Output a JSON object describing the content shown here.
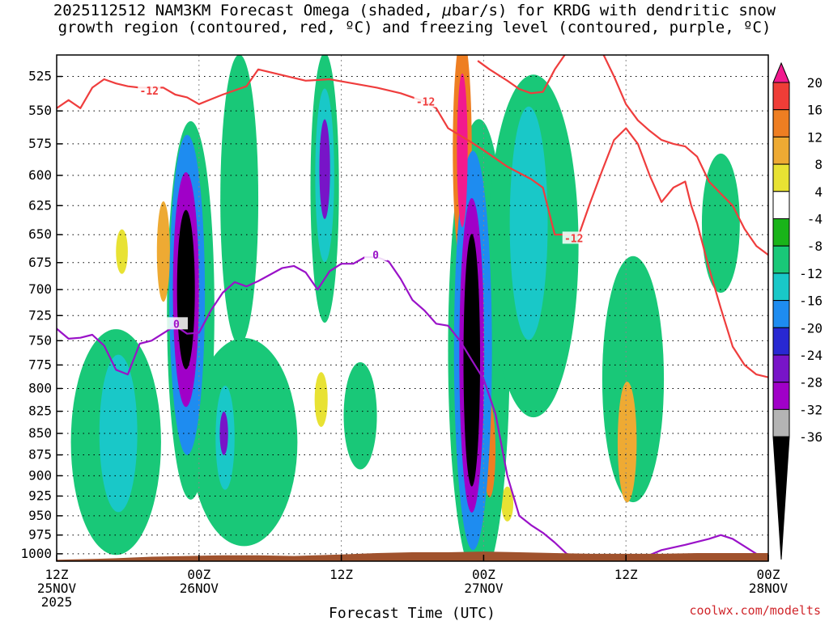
{
  "title": {
    "line1_pre": "2025112512 NAM3KM Forecast Omega (shaded, ",
    "line1_mu": "μ",
    "line1_post": "bar/s) for KRDG with dendritic snow",
    "line2": "growth region (contoured, red, ºC) and freezing level (contoured, purple, ºC)"
  },
  "chart_data": {
    "type": "heatmap",
    "xlabel": "Forecast Time (UTC)",
    "x_ticks": [
      {
        "hour": 0,
        "lines": [
          "12Z",
          "25NOV",
          "2025"
        ]
      },
      {
        "hour": 12,
        "lines": [
          "00Z",
          "26NOV"
        ]
      },
      {
        "hour": 24,
        "lines": [
          "12Z"
        ]
      },
      {
        "hour": 36,
        "lines": [
          "00Z",
          "27NOV"
        ]
      },
      {
        "hour": 48,
        "lines": [
          "12Z"
        ]
      },
      {
        "hour": 60,
        "lines": [
          "00Z",
          "28NOV"
        ]
      }
    ],
    "x_range_hours": [
      0,
      60
    ],
    "y_axis": {
      "type": "log-pressure",
      "range_mb": [
        1010,
        510
      ],
      "reversed": true
    },
    "y_ticks": [
      525,
      550,
      575,
      600,
      625,
      650,
      675,
      700,
      725,
      750,
      775,
      800,
      825,
      850,
      875,
      900,
      925,
      950,
      975,
      1000
    ],
    "grid": true,
    "colorbar": {
      "labels": [
        "20",
        "16",
        "12",
        "8",
        "4",
        "-4",
        "-8",
        "-12",
        "-16",
        "-20",
        "-24",
        "-28",
        "-32",
        "-36"
      ],
      "colors": [
        "#f21a8e",
        "#ef3d37",
        "#ee7e22",
        "#eeaa33",
        "#e8e233",
        "#ffffff",
        "#19b419",
        "#19c878",
        "#19c8c8",
        "#1e8cf0",
        "#2828d2",
        "#7814c8",
        "#a000c8",
        "#b4b4b4",
        "#000000"
      ]
    },
    "omega_features": [
      {
        "t": 10.9,
        "p": 700,
        "dt": 0.75,
        "dp": 75,
        "value": -36
      },
      {
        "t": 10.9,
        "p": 700,
        "dt": 1.1,
        "dp": 110,
        "value": -28
      },
      {
        "t": 11.0,
        "p": 705,
        "dt": 1.5,
        "dp": 150,
        "value": -16
      },
      {
        "t": 11.3,
        "p": 720,
        "dt": 2.0,
        "dp": 180,
        "value": -8
      },
      {
        "t": 35.0,
        "p": 770,
        "dt": 0.7,
        "dp": 130,
        "value": -36
      },
      {
        "t": 35.0,
        "p": 765,
        "dt": 1.05,
        "dp": 160,
        "value": -28
      },
      {
        "t": 35.1,
        "p": 760,
        "dt": 1.6,
        "dp": 200,
        "value": -16
      },
      {
        "t": 35.6,
        "p": 760,
        "dt": 2.6,
        "dp": 230,
        "value": -8
      },
      {
        "t": 22.6,
        "p": 595,
        "dt": 0.45,
        "dp": 40,
        "value": -24
      },
      {
        "t": 22.6,
        "p": 600,
        "dt": 0.8,
        "dp": 70,
        "value": -12
      },
      {
        "t": 22.6,
        "p": 610,
        "dt": 1.2,
        "dp": 110,
        "value": -8
      },
      {
        "t": 14.1,
        "p": 850,
        "dt": 0.35,
        "dp": 25,
        "value": -24
      },
      {
        "t": 14.2,
        "p": 855,
        "dt": 0.8,
        "dp": 60,
        "value": -12
      },
      {
        "t": 5.2,
        "p": 850,
        "dt": 1.6,
        "dp": 90,
        "value": -12
      },
      {
        "t": 5.0,
        "p": 860,
        "dt": 3.8,
        "dp": 130,
        "value": -8
      },
      {
        "t": 15.8,
        "p": 860,
        "dt": 4.5,
        "dp": 120,
        "value": -8
      },
      {
        "t": 15.4,
        "p": 620,
        "dt": 1.6,
        "dp": 120,
        "value": -8
      },
      {
        "t": 40.2,
        "p": 660,
        "dt": 3.8,
        "dp": 150,
        "value": -8
      },
      {
        "t": 39.8,
        "p": 640,
        "dt": 1.6,
        "dp": 100,
        "value": -12
      },
      {
        "t": 48.6,
        "p": 790,
        "dt": 2.6,
        "dp": 130,
        "value": -8
      },
      {
        "t": 56.0,
        "p": 640,
        "dt": 1.6,
        "dp": 60,
        "value": -8
      },
      {
        "t": 25.6,
        "p": 830,
        "dt": 1.4,
        "dp": 60,
        "value": -8
      },
      {
        "t": 34.2,
        "p": 580,
        "dt": 0.45,
        "dp": 60,
        "value": 20
      },
      {
        "t": 34.2,
        "p": 580,
        "dt": 0.8,
        "dp": 90,
        "value": 12
      },
      {
        "t": 36.5,
        "p": 870,
        "dt": 0.5,
        "dp": 55,
        "value": 12
      },
      {
        "t": 48.1,
        "p": 860,
        "dt": 0.8,
        "dp": 70,
        "value": 8
      },
      {
        "t": 9.0,
        "p": 665,
        "dt": 0.55,
        "dp": 45,
        "value": 8
      },
      {
        "t": 22.3,
        "p": 812,
        "dt": 0.55,
        "dp": 30,
        "value": 4
      },
      {
        "t": 5.5,
        "p": 665,
        "dt": 0.5,
        "dp": 20,
        "value": 4
      },
      {
        "t": 38.0,
        "p": 935,
        "dt": 0.5,
        "dp": 22,
        "value": 4
      }
    ],
    "contours": [
      {
        "name": "-12",
        "color": "#ef3d3d",
        "label_color": "#ef3d3d",
        "labels": [
          {
            "t": 7.8,
            "p": 535
          },
          {
            "t": 31.1,
            "p": 543
          },
          {
            "t": 43.6,
            "p": 653
          }
        ],
        "points": [
          [
            0,
            548
          ],
          [
            1,
            542
          ],
          [
            2,
            548
          ],
          [
            3,
            533
          ],
          [
            4,
            527
          ],
          [
            5,
            530
          ],
          [
            6,
            532
          ],
          [
            7,
            533
          ],
          [
            9,
            533
          ],
          [
            10,
            538
          ],
          [
            11,
            540
          ],
          [
            12,
            545
          ],
          [
            14,
            538
          ],
          [
            16,
            532
          ],
          [
            17,
            520
          ],
          [
            19,
            524
          ],
          [
            21,
            528
          ],
          [
            23,
            527
          ],
          [
            25,
            530
          ],
          [
            27,
            533
          ],
          [
            29,
            537
          ],
          [
            31,
            543
          ],
          [
            32,
            548
          ],
          [
            33,
            563
          ],
          [
            35,
            574
          ],
          [
            36,
            580
          ],
          [
            38,
            593
          ],
          [
            40,
            603
          ],
          [
            41,
            610
          ],
          [
            41.5,
            630
          ],
          [
            42,
            650
          ],
          [
            43,
            650
          ],
          [
            44,
            651
          ],
          [
            45,
            622
          ],
          [
            46,
            596
          ],
          [
            47,
            572
          ],
          [
            48,
            563
          ],
          [
            49,
            575
          ],
          [
            50,
            600
          ],
          [
            51,
            622
          ],
          [
            52,
            610
          ],
          [
            53,
            605
          ],
          [
            53.5,
            625
          ],
          [
            54,
            640
          ],
          [
            55,
            680
          ],
          [
            56,
            718
          ],
          [
            57,
            756
          ],
          [
            58,
            775
          ],
          [
            59,
            785
          ],
          [
            60,
            788
          ]
        ]
      },
      {
        "name": "-12 upper",
        "color": "#ef3d3d",
        "points": [
          [
            35.5,
            514
          ],
          [
            36.5,
            520
          ],
          [
            38,
            528
          ],
          [
            39,
            534
          ],
          [
            40,
            537
          ],
          [
            41,
            536
          ],
          [
            42,
            520
          ],
          [
            43,
            508
          ],
          [
            46,
            508
          ],
          [
            47,
            525
          ],
          [
            48,
            545
          ],
          [
            49,
            557
          ],
          [
            50,
            565
          ],
          [
            51,
            572
          ],
          [
            52,
            575
          ],
          [
            53,
            577
          ],
          [
            54,
            585
          ],
          [
            55,
            605
          ],
          [
            56,
            615
          ],
          [
            57,
            625
          ],
          [
            58,
            645
          ],
          [
            59,
            660
          ],
          [
            60,
            668
          ]
        ]
      },
      {
        "name": "0",
        "color": "#9a12c8",
        "label_color": "#9a12c8",
        "labels": [
          {
            "t": 26.9,
            "p": 668
          },
          {
            "t": 10.1,
            "p": 733
          }
        ],
        "points": [
          [
            0,
            738
          ],
          [
            1,
            748
          ],
          [
            2,
            747
          ],
          [
            3,
            744
          ],
          [
            4,
            755
          ],
          [
            5,
            780
          ],
          [
            6,
            785
          ],
          [
            7,
            753
          ],
          [
            8,
            750
          ],
          [
            10,
            735
          ],
          [
            11,
            743
          ],
          [
            12,
            742
          ],
          [
            13,
            720
          ],
          [
            14,
            703
          ],
          [
            15,
            693
          ],
          [
            16,
            697
          ],
          [
            17,
            692
          ],
          [
            18,
            686
          ],
          [
            19,
            680
          ],
          [
            20,
            678
          ],
          [
            21,
            684
          ],
          [
            22,
            700
          ],
          [
            23,
            683
          ],
          [
            24,
            676
          ],
          [
            25,
            676
          ],
          [
            26,
            670
          ],
          [
            27,
            670
          ],
          [
            28,
            674
          ],
          [
            29,
            690
          ],
          [
            30,
            710
          ],
          [
            31,
            720
          ],
          [
            32,
            733
          ],
          [
            33,
            735
          ],
          [
            34,
            750
          ],
          [
            35,
            770
          ],
          [
            36,
            790
          ],
          [
            37,
            828
          ],
          [
            38,
            900
          ],
          [
            39,
            950
          ],
          [
            40,
            962
          ],
          [
            41,
            972
          ],
          [
            42,
            985
          ],
          [
            43,
            1000
          ],
          [
            44,
            1005
          ]
        ]
      },
      {
        "name": "0 right",
        "color": "#9a12c8",
        "points": [
          [
            49.5,
            1005
          ],
          [
            51,
            995
          ],
          [
            53,
            988
          ],
          [
            55,
            980
          ],
          [
            56,
            975
          ],
          [
            57,
            980
          ],
          [
            58,
            990
          ],
          [
            59,
            1000
          ],
          [
            59.2,
            1005
          ]
        ]
      }
    ]
  },
  "credit": "coolwx.com/modelts"
}
